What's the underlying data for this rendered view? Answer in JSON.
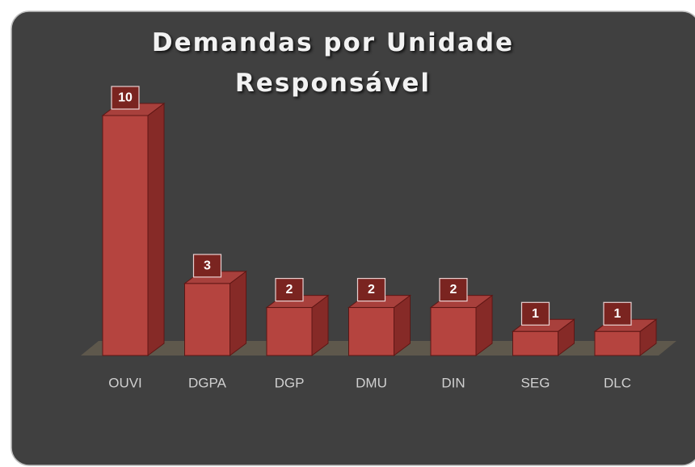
{
  "chart_data": {
    "type": "bar3d",
    "title": "Demandas por Unidade Responsável",
    "categories": [
      "OUVI",
      "DGPA",
      "DGP",
      "DMU",
      "DIN",
      "SEG",
      "DLC"
    ],
    "values": [
      10,
      3,
      2,
      2,
      2,
      1,
      1
    ],
    "color": "#b5443f"
  }
}
